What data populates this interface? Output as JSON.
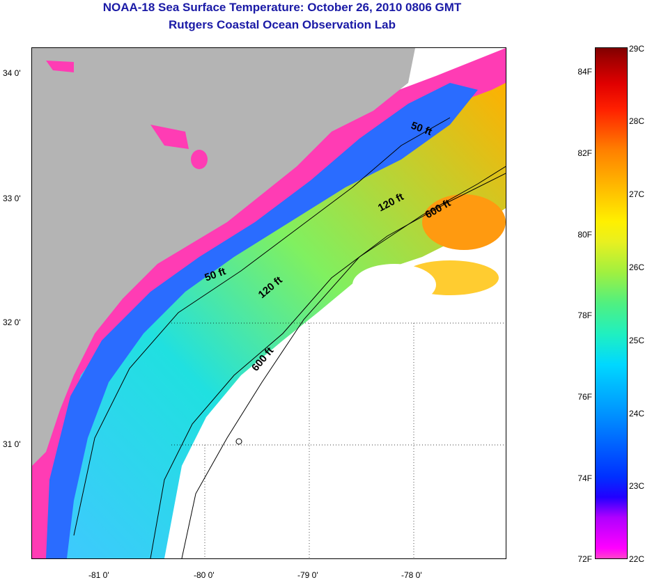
{
  "header": {
    "title": "NOAA-18 Sea Surface Temperature:  October 26, 2010 0806 GMT",
    "subtitle": "Rutgers Coastal Ocean Observation Lab"
  },
  "map": {
    "latitude_labels": [
      "34 0'",
      "33 0'",
      "32 0'",
      "31 0'"
    ],
    "longitude_labels": [
      "-81 0'",
      "-80 0'",
      "-79 0'",
      "-78 0'"
    ],
    "isobath_labels": [
      "50 ft",
      "50 ft",
      "120 ft",
      "120 ft",
      "600 ft",
      "600 ft"
    ],
    "colors": {
      "land": "#b4b4b4",
      "cloud_or_no_data": "#ffffff",
      "coldest": "#ff3cb4",
      "warmest": "#800000"
    }
  },
  "colorbar": {
    "fahrenheit_labels": [
      "84F",
      "82F",
      "80F",
      "78F",
      "76F",
      "74F",
      "72F"
    ],
    "celsius_labels": [
      "29C",
      "28C",
      "27C",
      "26C",
      "25C",
      "24C",
      "23C",
      "22C"
    ]
  }
}
